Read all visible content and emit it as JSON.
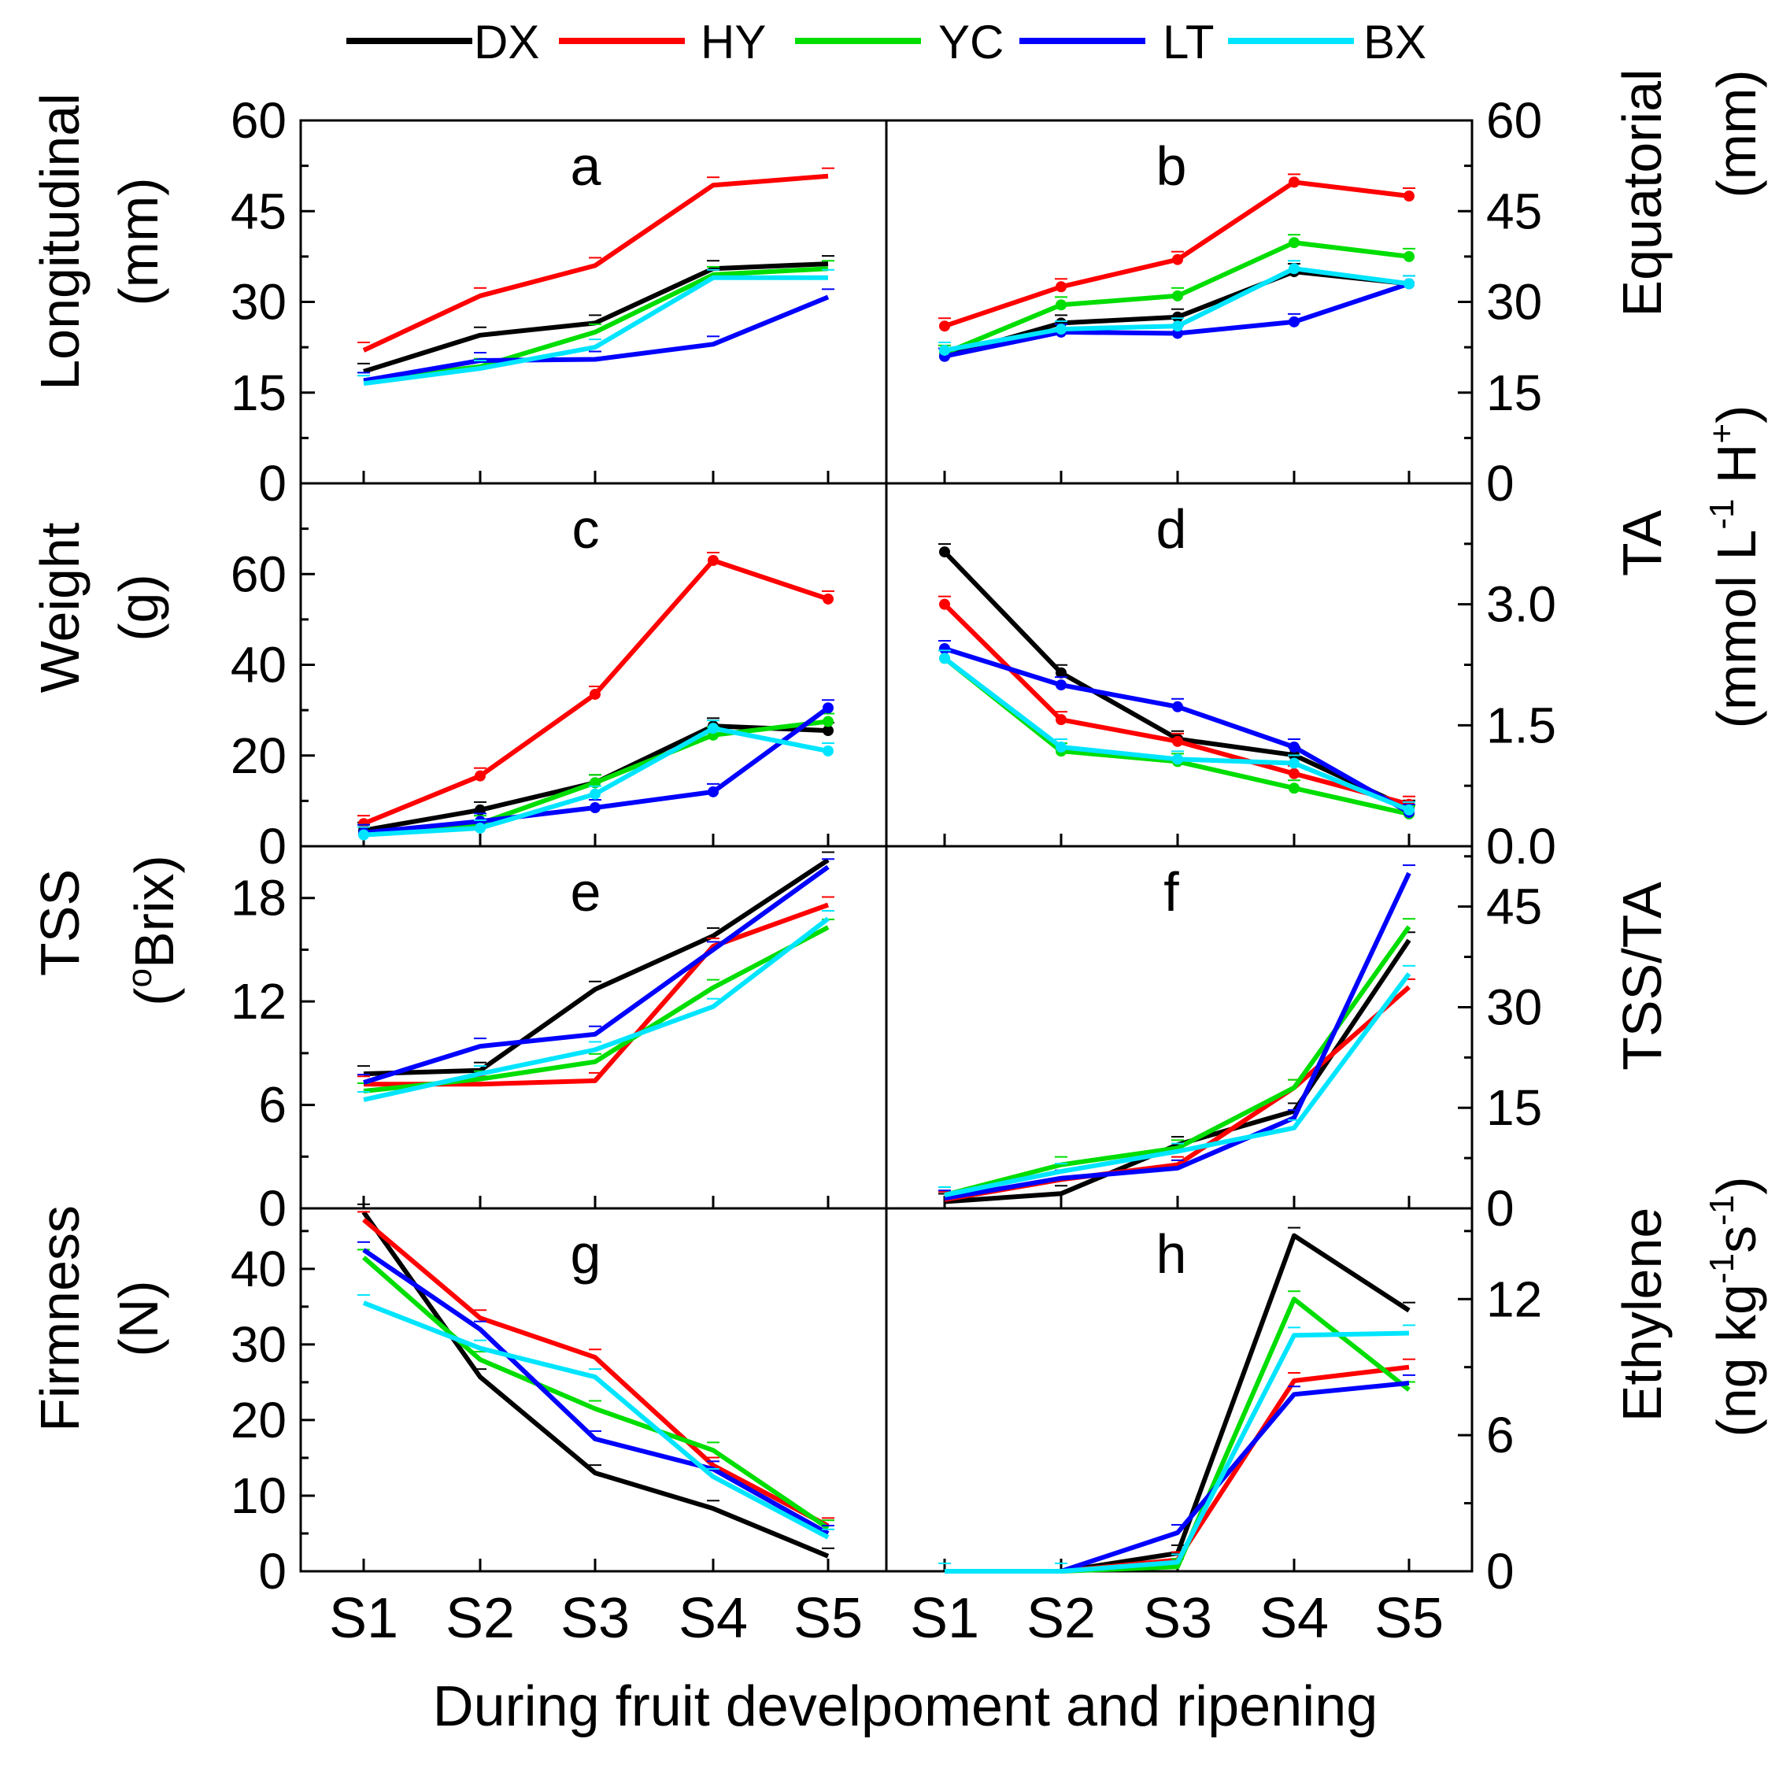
{
  "figure": {
    "x_axis_title": "During fruit develpoment and ripening",
    "stages": [
      "S1",
      "S2",
      "S3",
      "S4",
      "S5"
    ]
  },
  "legend": [
    {
      "name": "DX",
      "color": "#000000"
    },
    {
      "name": "HY",
      "color": "#ff0000"
    },
    {
      "name": "YC",
      "color": "#00dd00"
    },
    {
      "name": "LT",
      "color": "#0000ff"
    },
    {
      "name": "BX",
      "color": "#00e5ff"
    }
  ],
  "axis_titles": {
    "a": [
      "Longitudinal",
      "(mm)"
    ],
    "b": [
      "Equatorial",
      "(mm)"
    ],
    "c": [
      "Weight",
      "(g)"
    ],
    "d_line1": "TA",
    "d_line2": {
      "pre": "(mmol L",
      "exp1": "-1",
      "mid": " H",
      "exp2": "+",
      "post": ")"
    },
    "e_line1": "TSS",
    "e_line2": {
      "pre": "(",
      "exp": "o",
      "post": "Brix)"
    },
    "f": "TSS/TA",
    "g": [
      "Firmness",
      "(N)"
    ],
    "h_line1": "Ethylene",
    "h_line2": {
      "pre": "(ng kg",
      "exp1": "-1",
      "mid": "s",
      "exp2": "-1",
      "post": ")"
    }
  },
  "chart_data": [
    {
      "type": "line",
      "panel": "a",
      "side": "left",
      "ylim": [
        0,
        60
      ],
      "yticks": [
        0,
        15,
        30,
        45,
        60
      ],
      "ytick_labels": [
        "0",
        "15",
        "30",
        "45",
        "60"
      ],
      "markers": false,
      "categories": [
        "S1",
        "S2",
        "S3",
        "S4",
        "S5"
      ],
      "series": [
        {
          "name": "DX",
          "values": [
            18.5,
            24.5,
            26.5,
            35.5,
            36.3
          ]
        },
        {
          "name": "HY",
          "values": [
            22,
            31,
            36,
            49.3,
            50.8
          ]
        },
        {
          "name": "YC",
          "values": [
            17,
            19.3,
            25,
            34.5,
            35.5
          ]
        },
        {
          "name": "LT",
          "values": [
            17,
            20.3,
            20.5,
            23,
            30.8
          ]
        },
        {
          "name": "BX",
          "values": [
            16.5,
            19,
            22.5,
            34,
            34
          ]
        }
      ]
    },
    {
      "type": "line",
      "panel": "b",
      "side": "right",
      "ylim": [
        0,
        60
      ],
      "yticks": [
        0,
        15,
        30,
        45,
        60
      ],
      "ytick_labels": [
        "0",
        "15",
        "30",
        "45",
        "60"
      ],
      "markers": true,
      "categories": [
        "S1",
        "S2",
        "S3",
        "S4",
        "S5"
      ],
      "series": [
        {
          "name": "DX",
          "values": [
            21,
            26.5,
            27.5,
            35,
            33
          ]
        },
        {
          "name": "HY",
          "values": [
            26,
            32.5,
            37,
            49.8,
            47.5
          ]
        },
        {
          "name": "YC",
          "values": [
            21.5,
            29.5,
            31,
            39.8,
            37.5
          ]
        },
        {
          "name": "LT",
          "values": [
            21,
            25,
            24.8,
            26.7,
            33
          ]
        },
        {
          "name": "BX",
          "values": [
            22,
            25.5,
            26,
            35.5,
            33
          ]
        }
      ]
    },
    {
      "type": "line",
      "panel": "c",
      "side": "left",
      "ylim": [
        0,
        80
      ],
      "yticks": [
        0,
        20,
        40,
        60
      ],
      "ytick_labels": [
        "0",
        "20",
        "40",
        "60"
      ],
      "markers": true,
      "categories": [
        "S1",
        "S2",
        "S3",
        "S4",
        "S5"
      ],
      "series": [
        {
          "name": "DX",
          "values": [
            3.5,
            8,
            14,
            26.5,
            25.5
          ]
        },
        {
          "name": "HY",
          "values": [
            5,
            15.5,
            33.5,
            63,
            54.5
          ]
        },
        {
          "name": "YC",
          "values": [
            3,
            5,
            14,
            24.5,
            27.5
          ]
        },
        {
          "name": "LT",
          "values": [
            3,
            5.5,
            8.5,
            12,
            30.5
          ]
        },
        {
          "name": "BX",
          "values": [
            2.5,
            4,
            11.5,
            26,
            21
          ]
        }
      ]
    },
    {
      "type": "line",
      "panel": "d",
      "side": "right",
      "ylim": [
        0,
        4.5
      ],
      "yticks": [
        0,
        1.5,
        3.0
      ],
      "ytick_labels": [
        "0.0",
        "1.5",
        "3.0"
      ],
      "markers": true,
      "categories": [
        "S1",
        "S2",
        "S3",
        "S4",
        "S5"
      ],
      "series": [
        {
          "name": "DX",
          "values": [
            3.65,
            2.15,
            1.33,
            1.13,
            0.47
          ]
        },
        {
          "name": "HY",
          "values": [
            3.0,
            1.57,
            1.3,
            0.9,
            0.52
          ]
        },
        {
          "name": "YC",
          "values": [
            2.33,
            1.18,
            1.05,
            0.72,
            0.4
          ]
        },
        {
          "name": "LT",
          "values": [
            2.45,
            2.0,
            1.73,
            1.23,
            0.42
          ]
        },
        {
          "name": "BX",
          "values": [
            2.33,
            1.23,
            1.08,
            1.03,
            0.45
          ]
        }
      ]
    },
    {
      "type": "line",
      "panel": "e",
      "side": "left",
      "ylim": [
        0,
        21
      ],
      "yticks": [
        0,
        6,
        12,
        18
      ],
      "ytick_labels": [
        "0",
        "6",
        "12",
        "18"
      ],
      "markers": false,
      "categories": [
        "S1",
        "S2",
        "S3",
        "S4",
        "S5"
      ],
      "series": [
        {
          "name": "DX",
          "values": [
            7.8,
            8,
            12.7,
            15.8,
            20.2
          ]
        },
        {
          "name": "HY",
          "values": [
            7.2,
            7.2,
            7.4,
            15.2,
            17.6
          ]
        },
        {
          "name": "YC",
          "values": [
            6.8,
            7.5,
            8.5,
            12.8,
            16.3
          ]
        },
        {
          "name": "LT",
          "values": [
            7.3,
            9.4,
            10.1,
            15,
            19.8
          ]
        },
        {
          "name": "BX",
          "values": [
            6.3,
            7.8,
            9.2,
            11.7,
            16.8
          ]
        }
      ]
    },
    {
      "type": "line",
      "panel": "f",
      "side": "right",
      "ylim": [
        0,
        54
      ],
      "yticks": [
        0,
        15,
        30,
        45
      ],
      "ytick_labels": [
        "0",
        "15",
        "30",
        "45"
      ],
      "markers": false,
      "categories": [
        "S1",
        "S2",
        "S3",
        "S4",
        "S5"
      ],
      "series": [
        {
          "name": "DX",
          "values": [
            1,
            2.2,
            9.5,
            14.5,
            40
          ]
        },
        {
          "name": "HY",
          "values": [
            1.3,
            4.3,
            6.5,
            18,
            33
          ]
        },
        {
          "name": "YC",
          "values": [
            2,
            6.5,
            9,
            18,
            42
          ]
        },
        {
          "name": "LT",
          "values": [
            1.5,
            4.5,
            6,
            13.5,
            50
          ]
        },
        {
          "name": "BX",
          "values": [
            2,
            5.5,
            8.5,
            12,
            35
          ]
        }
      ]
    },
    {
      "type": "line",
      "panel": "g",
      "side": "left",
      "ylim": [
        0,
        48
      ],
      "yticks": [
        0,
        10,
        20,
        30,
        40
      ],
      "ytick_labels": [
        "0",
        "10",
        "20",
        "30",
        "40"
      ],
      "markers": false,
      "categories": [
        "S1",
        "S2",
        "S3",
        "S4",
        "S5"
      ],
      "series": [
        {
          "name": "DX",
          "values": [
            47.5,
            25.7,
            13,
            8.3,
            2
          ]
        },
        {
          "name": "HY",
          "values": [
            46.5,
            33.5,
            28.3,
            14,
            6
          ]
        },
        {
          "name": "YC",
          "values": [
            41.5,
            28,
            21.5,
            16,
            5.7
          ]
        },
        {
          "name": "LT",
          "values": [
            42.5,
            32,
            17.5,
            13.5,
            5
          ]
        },
        {
          "name": "BX",
          "values": [
            35.5,
            29.5,
            25.7,
            12.5,
            4.5
          ]
        }
      ]
    },
    {
      "type": "line",
      "panel": "h",
      "side": "right",
      "ylim": [
        0,
        16
      ],
      "yticks": [
        0,
        6,
        12
      ],
      "ytick_labels": [
        "0",
        "6",
        "12"
      ],
      "markers": false,
      "categories": [
        "S1",
        "S2",
        "S3",
        "S4",
        "S5"
      ],
      "series": [
        {
          "name": "DX",
          "values": [
            0,
            0,
            0.8,
            14.8,
            11.5
          ]
        },
        {
          "name": "HY",
          "values": [
            0,
            0,
            0.5,
            8.4,
            9
          ]
        },
        {
          "name": "YC",
          "values": [
            0,
            0,
            0.2,
            12,
            8
          ]
        },
        {
          "name": "LT",
          "values": [
            0,
            0,
            1.7,
            7.8,
            8.3
          ]
        },
        {
          "name": "BX",
          "values": [
            0,
            0,
            0.4,
            10.4,
            10.5
          ]
        }
      ]
    }
  ]
}
